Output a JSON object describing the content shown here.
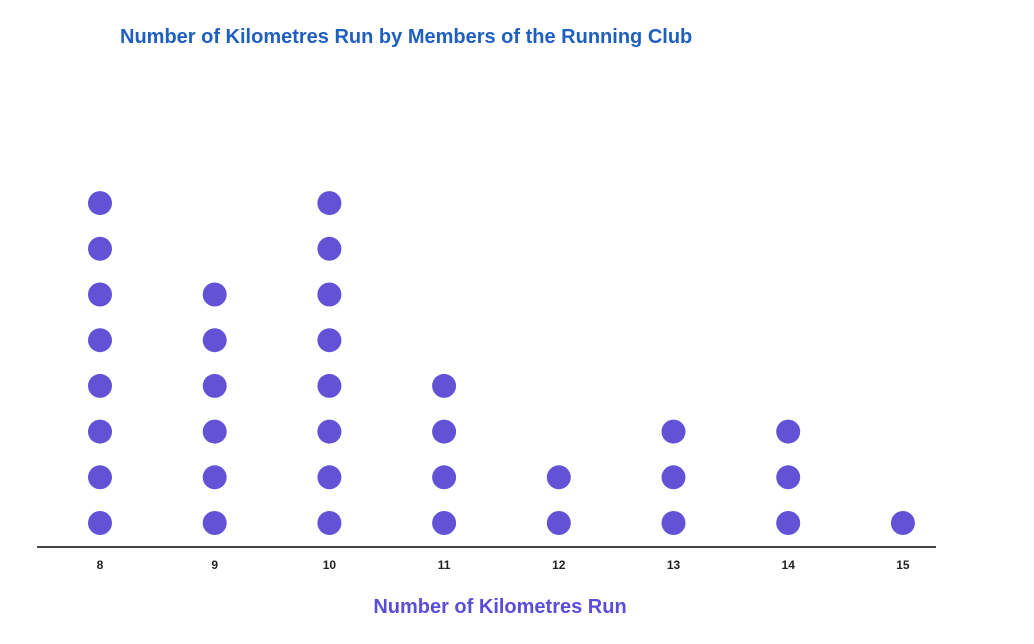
{
  "chart_data": {
    "type": "scatter",
    "subtype": "dot-plot",
    "title": "Number of Kilometres Run by Members of the Running Club",
    "xlabel": "Number of Kilometres Run",
    "ylabel": "",
    "categories": [
      "8",
      "9",
      "10",
      "11",
      "12",
      "13",
      "14",
      "15"
    ],
    "values": [
      8,
      6,
      8,
      4,
      2,
      3,
      3,
      1
    ],
    "xlim": [
      8,
      15
    ],
    "grid": false,
    "legend": "none",
    "colors": {
      "dot": "#6352d6",
      "title": "#1f5fbf",
      "xlabel": "#5a4ed8",
      "axis": "#444444"
    }
  }
}
